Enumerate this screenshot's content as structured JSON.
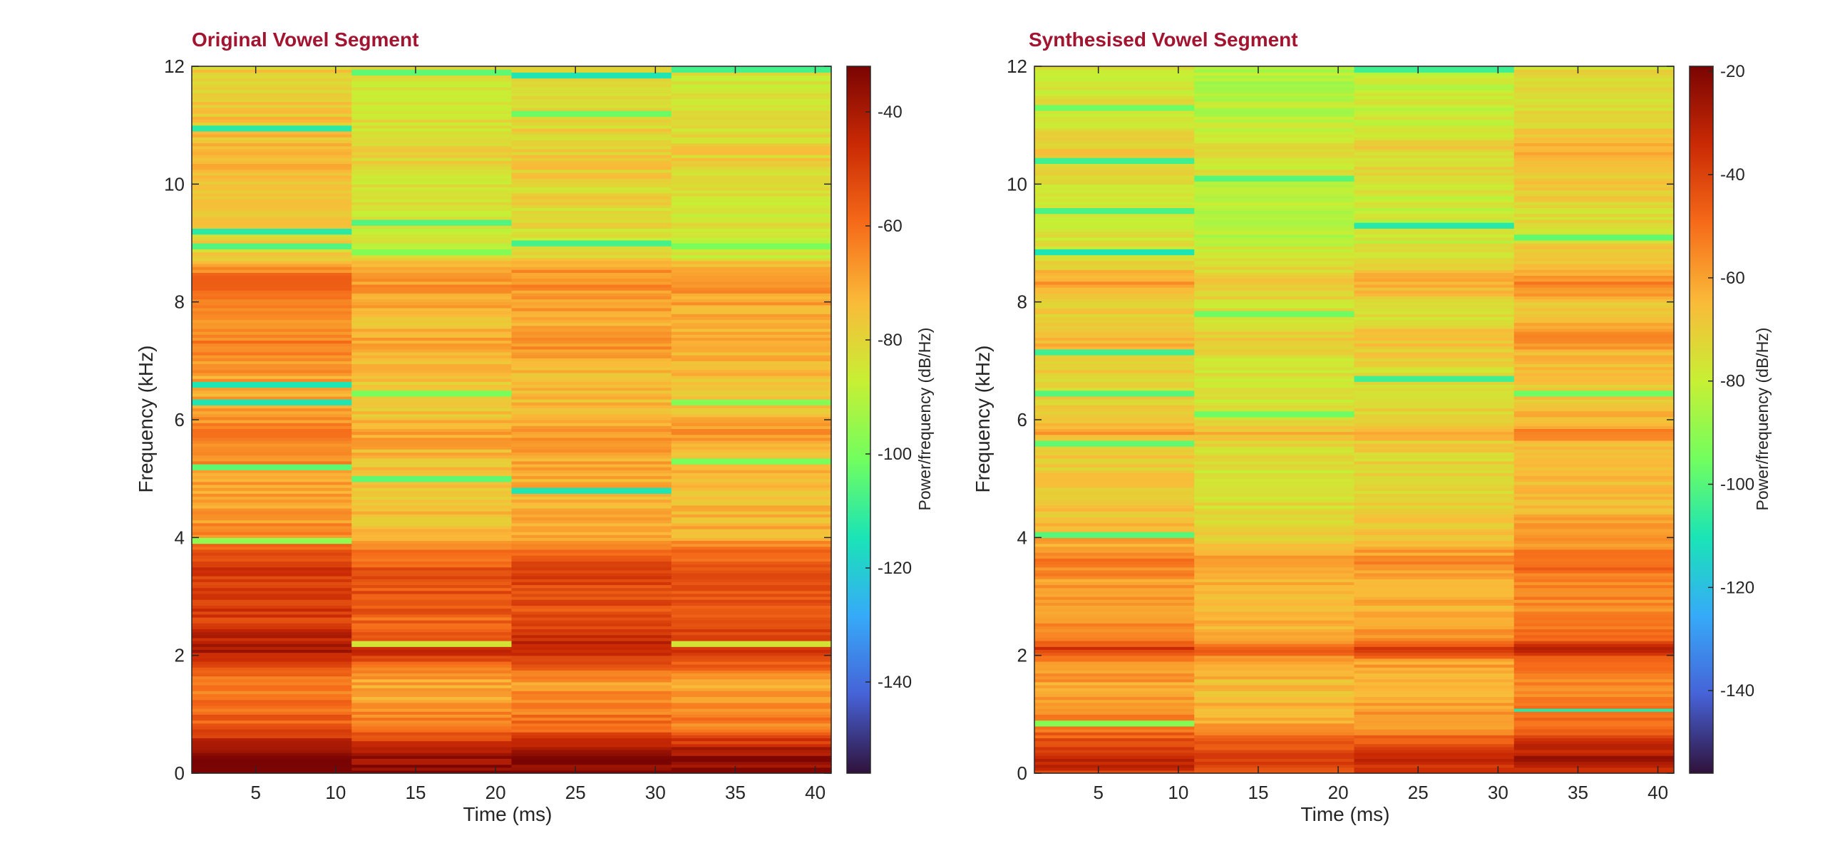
{
  "figure": {
    "panels": [
      {
        "title": "Original Vowel Segment",
        "xlabel": "Time (ms)",
        "ylabel": "Frequency (kHz)",
        "colorbar_label": "Power/frequency (dB/Hz)"
      },
      {
        "title": "Synthesised Vowel Segment",
        "xlabel": "Time (ms)",
        "ylabel": "Frequency (kHz)",
        "colorbar_label": "Power/frequency (dB/Hz)"
      }
    ]
  },
  "colors": {
    "title": "#a2142f",
    "colormap": "turbo",
    "colormap_stops": [
      "#30123b",
      "#4662d7",
      "#36aaf9",
      "#1ae4b6",
      "#72fe5e",
      "#c8ef34",
      "#faba39",
      "#f66b19",
      "#ca2a04",
      "#7a0403"
    ]
  },
  "chart_data": [
    {
      "type": "heatmap",
      "title": "Original Vowel Segment",
      "xlabel": "Time (ms)",
      "ylabel": "Frequency (kHz)",
      "xlim": [
        1,
        41
      ],
      "ylim": [
        0,
        12
      ],
      "xticks": [
        5,
        10,
        15,
        20,
        25,
        30,
        35,
        40
      ],
      "yticks": [
        0,
        2,
        4,
        6,
        8,
        10,
        12
      ],
      "time_frames": [
        6,
        16,
        26,
        36
      ],
      "colorbar": {
        "label": "Power/frequency (dB/Hz)",
        "clim": [
          -156,
          -32
        ],
        "ticks": [
          -40,
          -60,
          -80,
          -100,
          -120,
          -140
        ]
      },
      "base_profile_db": [
        [
          0,
          -33
        ],
        [
          0.3,
          -35
        ],
        [
          0.5,
          -45
        ],
        [
          0.8,
          -60
        ],
        [
          1.5,
          -68
        ],
        [
          1.8,
          -58
        ],
        [
          2.0,
          -48
        ],
        [
          2.15,
          -42
        ],
        [
          2.3,
          -48
        ],
        [
          2.6,
          -55
        ],
        [
          3.0,
          -52
        ],
        [
          3.5,
          -53
        ],
        [
          3.8,
          -58
        ],
        [
          4.0,
          -70
        ],
        [
          4.5,
          -72
        ],
        [
          5.0,
          -72
        ],
        [
          5.5,
          -70
        ],
        [
          5.8,
          -65
        ],
        [
          6.0,
          -72
        ],
        [
          6.5,
          -74
        ],
        [
          7.0,
          -72
        ],
        [
          7.3,
          -66
        ],
        [
          7.6,
          -72
        ],
        [
          8.0,
          -68
        ],
        [
          8.3,
          -64
        ],
        [
          8.6,
          -68
        ],
        [
          8.8,
          -84
        ],
        [
          9.5,
          -82
        ],
        [
          10.0,
          -80
        ],
        [
          10.4,
          -76
        ],
        [
          11.0,
          -80
        ],
        [
          12.0,
          -82
        ]
      ],
      "frame_offsets_db": [
        4,
        -3,
        0,
        -2
      ],
      "notches": [
        {
          "frame": 1,
          "freq": 10.95,
          "db": -112
        },
        {
          "frame": 1,
          "freq": 9.2,
          "db": -112
        },
        {
          "frame": 1,
          "freq": 8.95,
          "db": -106
        },
        {
          "frame": 1,
          "freq": 6.6,
          "db": -114
        },
        {
          "frame": 1,
          "freq": 6.3,
          "db": -114
        },
        {
          "frame": 1,
          "freq": 5.2,
          "db": -104
        },
        {
          "frame": 1,
          "freq": 3.95,
          "db": -96
        },
        {
          "frame": 2,
          "freq": 11.9,
          "db": -104
        },
        {
          "frame": 2,
          "freq": 9.35,
          "db": -106
        },
        {
          "frame": 2,
          "freq": 8.85,
          "db": -98
        },
        {
          "frame": 2,
          "freq": 6.45,
          "db": -100
        },
        {
          "frame": 2,
          "freq": 5.0,
          "db": -104
        },
        {
          "frame": 2,
          "freq": 2.2,
          "db": -84
        },
        {
          "frame": 3,
          "freq": 11.85,
          "db": -114
        },
        {
          "frame": 3,
          "freq": 11.2,
          "db": -102
        },
        {
          "frame": 3,
          "freq": 9.0,
          "db": -108
        },
        {
          "frame": 3,
          "freq": 4.8,
          "db": -114
        },
        {
          "frame": 4,
          "freq": 11.95,
          "db": -108
        },
        {
          "frame": 4,
          "freq": 8.95,
          "db": -100
        },
        {
          "frame": 4,
          "freq": 6.3,
          "db": -98
        },
        {
          "frame": 4,
          "freq": 5.3,
          "db": -100
        },
        {
          "frame": 4,
          "freq": 2.2,
          "db": -84
        }
      ]
    },
    {
      "type": "heatmap",
      "title": "Synthesised Vowel Segment",
      "xlabel": "Time (ms)",
      "ylabel": "Frequency (kHz)",
      "xlim": [
        1,
        41
      ],
      "ylim": [
        0,
        12
      ],
      "xticks": [
        5,
        10,
        15,
        20,
        25,
        30,
        35,
        40
      ],
      "yticks": [
        0,
        2,
        4,
        6,
        8,
        10,
        12
      ],
      "time_frames": [
        6,
        16,
        26,
        36
      ],
      "colorbar": {
        "label": "Power/frequency (dB/Hz)",
        "clim": [
          -156,
          -19
        ],
        "ticks": [
          -20,
          -40,
          -60,
          -80,
          -100,
          -120,
          -140
        ]
      },
      "base_profile_db": [
        [
          0,
          -38
        ],
        [
          0.2,
          -30
        ],
        [
          0.4,
          -36
        ],
        [
          0.8,
          -54
        ],
        [
          1.5,
          -60
        ],
        [
          1.9,
          -56
        ],
        [
          2.1,
          -36
        ],
        [
          2.3,
          -54
        ],
        [
          2.8,
          -60
        ],
        [
          3.3,
          -58
        ],
        [
          3.6,
          -52
        ],
        [
          3.9,
          -62
        ],
        [
          4.5,
          -68
        ],
        [
          5.0,
          -70
        ],
        [
          5.6,
          -68
        ],
        [
          5.8,
          -58
        ],
        [
          6.0,
          -68
        ],
        [
          6.5,
          -72
        ],
        [
          7.0,
          -70
        ],
        [
          7.4,
          -62
        ],
        [
          7.7,
          -70
        ],
        [
          8.0,
          -70
        ],
        [
          8.35,
          -58
        ],
        [
          8.6,
          -70
        ],
        [
          9.0,
          -75
        ],
        [
          9.5,
          -78
        ],
        [
          10.0,
          -74
        ],
        [
          10.6,
          -68
        ],
        [
          11.0,
          -76
        ],
        [
          12.0,
          -78
        ]
      ],
      "frame_offsets_db": [
        0,
        -6,
        -3,
        4
      ],
      "notches": [
        {
          "frame": 1,
          "freq": 11.3,
          "db": -96
        },
        {
          "frame": 1,
          "freq": 10.4,
          "db": -104
        },
        {
          "frame": 1,
          "freq": 9.55,
          "db": -102
        },
        {
          "frame": 1,
          "freq": 8.85,
          "db": -110
        },
        {
          "frame": 1,
          "freq": 7.15,
          "db": -104
        },
        {
          "frame": 1,
          "freq": 6.45,
          "db": -100
        },
        {
          "frame": 1,
          "freq": 5.6,
          "db": -98
        },
        {
          "frame": 1,
          "freq": 4.05,
          "db": -100
        },
        {
          "frame": 1,
          "freq": 0.85,
          "db": -92
        },
        {
          "frame": 2,
          "freq": 10.1,
          "db": -100
        },
        {
          "frame": 2,
          "freq": 7.8,
          "db": -96
        },
        {
          "frame": 2,
          "freq": 6.1,
          "db": -96
        },
        {
          "frame": 3,
          "freq": 11.95,
          "db": -104
        },
        {
          "frame": 3,
          "freq": 9.3,
          "db": -108
        },
        {
          "frame": 3,
          "freq": 6.7,
          "db": -104
        },
        {
          "frame": 4,
          "freq": 9.1,
          "db": -98
        },
        {
          "frame": 4,
          "freq": 6.45,
          "db": -96
        },
        {
          "frame": 4,
          "freq": 1.08,
          "db": -108
        }
      ]
    }
  ]
}
